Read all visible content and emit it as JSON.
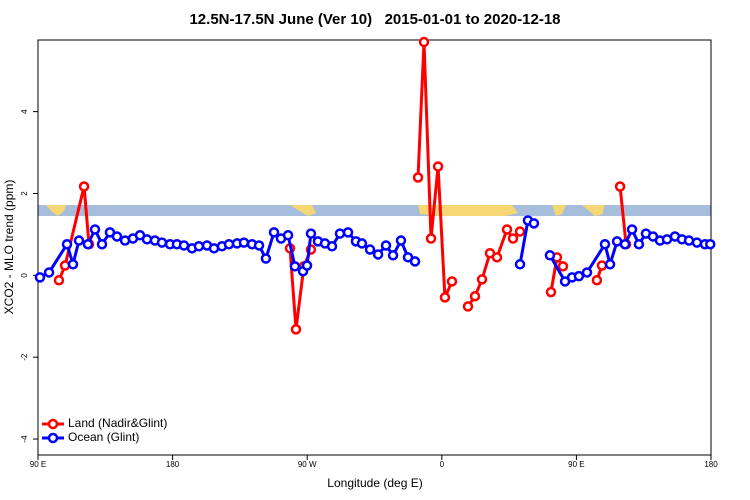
{
  "chart_data": {
    "type": "line",
    "title": "12.5N-17.5N June (Ver 10)   2015-01-01 to 2020-12-18",
    "xlabel": "Longitude (deg E)",
    "ylabel": "XCO2 - MLO trend (ppm)",
    "xlim": [
      90,
      540
    ],
    "ylim": [
      -4.39,
      5.75
    ],
    "xticks": [
      {
        "value": 90,
        "label": "90 E"
      },
      180,
      {
        "value": 270,
        "label": "90 W"
      },
      {
        "value": 360,
        "label": "0"
      },
      {
        "value": 450,
        "label": "90 E"
      },
      {
        "value": 540,
        "label": "180"
      }
    ],
    "yticks": [
      -4,
      -2,
      0,
      2,
      4
    ],
    "legend": "bottomleft",
    "series": [
      {
        "name": "Land (Nadir&Glint)",
        "color": "#ff0000",
        "x": [
          104.0,
          108.1,
          120.8,
          124.1,
          null,
          258.5,
          262.5,
          267.8,
          272.5,
          null,
          344.1,
          348.1,
          352.8,
          357.5,
          362.1,
          366.8,
          null,
          377.5,
          382.2,
          386.9,
          392.2,
          396.9,
          403.6,
          407.6,
          412.3,
          null,
          433.0,
          437.0,
          441.0,
          null,
          463.7,
          467.1,
          null,
          479.2,
          483.2
        ],
        "values": [
          -0.12,
          0.24,
          2.17,
          0.76,
          null,
          0.66,
          -1.32,
          0.22,
          0.63,
          null,
          2.39,
          5.7,
          0.9,
          2.66,
          -0.54,
          -0.15,
          null,
          -0.76,
          -0.51,
          -0.1,
          0.54,
          0.44,
          1.12,
          0.9,
          1.07,
          null,
          -0.41,
          0.44,
          0.22,
          null,
          -0.12,
          0.24,
          null,
          2.17,
          0.76
        ]
      },
      {
        "name": "Ocean (Glint)",
        "color": "#0000ff",
        "x": [
          91.3,
          97.4,
          109.4,
          113.4,
          117.4,
          123.4,
          128.1,
          132.8,
          138.1,
          142.8,
          148.2,
          153.5,
          158.2,
          162.9,
          168.2,
          172.9,
          178.3,
          182.9,
          187.6,
          193.0,
          197.6,
          203.0,
          207.7,
          213.0,
          217.7,
          223.1,
          227.7,
          233.1,
          237.8,
          242.4,
          247.8,
          252.5,
          257.2,
          261.8,
          267.2,
          269.9,
          272.5,
          277.2,
          281.9,
          286.6,
          291.9,
          297.3,
          302.6,
          306.6,
          312.0,
          317.4,
          322.7,
          327.4,
          332.7,
          337.4,
          342.1,
          null,
          412.3,
          417.6,
          421.6,
          null,
          432.3,
          442.4,
          447.1,
          451.7,
          457.1,
          469.1,
          472.5,
          477.2,
          482.5,
          487.2,
          491.8,
          496.5,
          501.2,
          505.9,
          510.6,
          515.9,
          520.6,
          525.3,
          530.6,
          536.0,
          539.5
        ],
        "values": [
          -0.05,
          0.07,
          0.76,
          0.27,
          0.85,
          0.76,
          1.12,
          0.76,
          1.05,
          0.95,
          0.85,
          0.9,
          0.98,
          0.88,
          0.85,
          0.8,
          0.76,
          0.76,
          0.73,
          0.66,
          0.71,
          0.73,
          0.66,
          0.71,
          0.76,
          0.78,
          0.8,
          0.76,
          0.73,
          0.41,
          1.05,
          0.9,
          0.98,
          0.22,
          0.1,
          0.24,
          1.02,
          0.83,
          0.78,
          0.71,
          1.02,
          1.05,
          0.83,
          0.78,
          0.63,
          0.51,
          0.73,
          0.49,
          0.85,
          0.44,
          0.34,
          null,
          0.27,
          1.34,
          1.27,
          null,
          0.49,
          -0.15,
          -0.05,
          -0.02,
          0.07,
          0.76,
          0.27,
          0.83,
          0.76,
          1.12,
          0.76,
          1.02,
          0.95,
          0.85,
          0.88,
          0.95,
          0.88,
          0.85,
          0.8,
          0.76,
          0.76
        ]
      }
    ]
  }
}
